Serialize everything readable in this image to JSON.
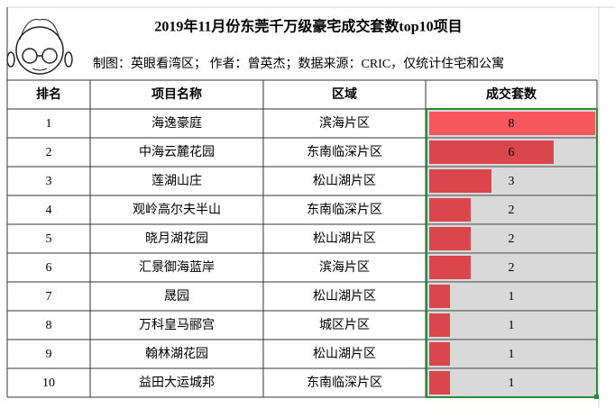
{
  "title": "2019年11月份东莞千万级豪宅成交套数top10项目",
  "subtitle": "制图：英眼看湾区；  作者：曾英杰；数据来源：CRIC，仅统计住宅和公寓",
  "table": {
    "headers": [
      "排名",
      "项目名称",
      "区域",
      "成交套数"
    ],
    "rows": [
      [
        1,
        "海逸豪庭",
        "滨海片区",
        8
      ],
      [
        2,
        "中海云麓花园",
        "东南临深片区",
        6
      ],
      [
        3,
        "莲湖山庄",
        "松山湖片区",
        3
      ],
      [
        4,
        "观岭高尔夫半山",
        "东南临深片区",
        2
      ],
      [
        5,
        "晓月湖花园",
        "松山湖片区",
        2
      ],
      [
        6,
        "汇景御海蓝岸",
        "滨海片区",
        2
      ],
      [
        7,
        "晟园",
        "松山湖片区",
        1
      ],
      [
        8,
        "万科皇马郦宫",
        "城区片区",
        1
      ],
      [
        9,
        "翰林湖花园",
        "松山湖片区",
        1
      ],
      [
        10,
        "益田大运城邦",
        "东南临深片区",
        1
      ]
    ]
  }
}
